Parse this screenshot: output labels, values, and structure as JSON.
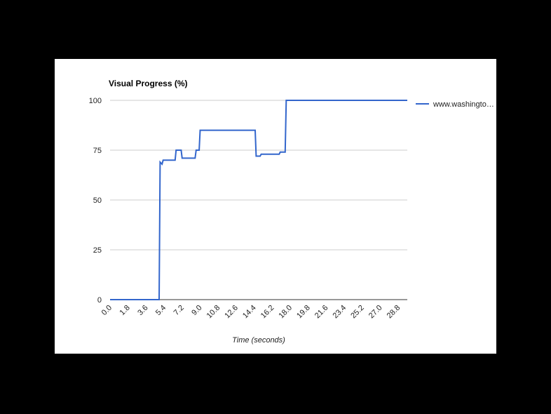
{
  "chart_data": {
    "type": "line",
    "title": "Visual Progress (%)",
    "xlabel": "Time (seconds)",
    "ylabel": "",
    "xlim": [
      0,
      29.7
    ],
    "ylim": [
      0,
      100
    ],
    "y_ticks": [
      "0",
      "25",
      "50",
      "75",
      "100"
    ],
    "x_ticks": [
      "0.0",
      "1.8",
      "3.6",
      "5.4",
      "7.2",
      "9.0",
      "10.8",
      "12.6",
      "14.4",
      "16.2",
      "18.0",
      "19.8",
      "21.6",
      "23.4",
      "25.2",
      "27.0",
      "28.8"
    ],
    "grid": true,
    "legend_position": "right",
    "series": [
      {
        "name": "www.washingto…",
        "color": "#3366cc",
        "points": [
          [
            0.0,
            0
          ],
          [
            4.9,
            0
          ],
          [
            5.0,
            69
          ],
          [
            5.2,
            68
          ],
          [
            5.3,
            70
          ],
          [
            6.5,
            70
          ],
          [
            6.6,
            75
          ],
          [
            7.1,
            75
          ],
          [
            7.2,
            71
          ],
          [
            8.5,
            71
          ],
          [
            8.6,
            75
          ],
          [
            8.9,
            75
          ],
          [
            9.0,
            85
          ],
          [
            14.5,
            85
          ],
          [
            14.6,
            72
          ],
          [
            15.0,
            72
          ],
          [
            15.1,
            73
          ],
          [
            16.9,
            73
          ],
          [
            17.0,
            74
          ],
          [
            17.5,
            74
          ],
          [
            17.6,
            100
          ],
          [
            29.7,
            100
          ]
        ]
      }
    ]
  }
}
